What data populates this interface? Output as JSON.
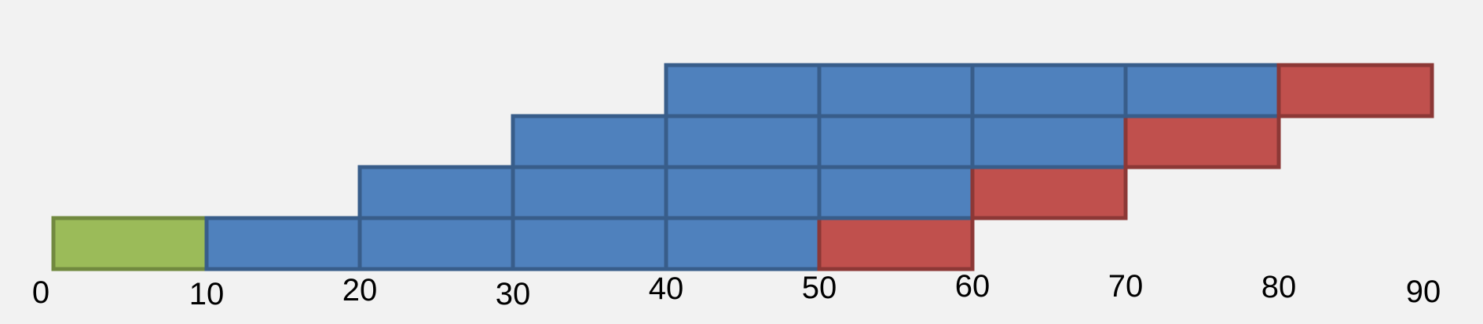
{
  "chart_data": {
    "type": "gantt-diagram",
    "x_axis": {
      "ticks": [
        {
          "value": 0,
          "label": "0"
        },
        {
          "value": 10,
          "label": "10"
        },
        {
          "value": 20,
          "label": "20"
        },
        {
          "value": 30,
          "label": "30"
        },
        {
          "value": 40,
          "label": "40"
        },
        {
          "value": 50,
          "label": "50"
        },
        {
          "value": 60,
          "label": "60"
        },
        {
          "value": 70,
          "label": "70"
        },
        {
          "value": 80,
          "label": "80"
        },
        {
          "value": 90,
          "label": "90"
        }
      ],
      "range": [
        0,
        90
      ]
    },
    "rows": [
      {
        "segments": [
          {
            "start": 0,
            "end": 10,
            "kind": "green"
          },
          {
            "start": 10,
            "end": 20,
            "kind": "blue"
          },
          {
            "start": 20,
            "end": 30,
            "kind": "blue"
          },
          {
            "start": 30,
            "end": 40,
            "kind": "blue"
          },
          {
            "start": 40,
            "end": 50,
            "kind": "blue"
          },
          {
            "start": 50,
            "end": 60,
            "kind": "red"
          }
        ]
      },
      {
        "segments": [
          {
            "start": 20,
            "end": 30,
            "kind": "blue"
          },
          {
            "start": 30,
            "end": 40,
            "kind": "blue"
          },
          {
            "start": 40,
            "end": 50,
            "kind": "blue"
          },
          {
            "start": 50,
            "end": 60,
            "kind": "blue"
          },
          {
            "start": 60,
            "end": 70,
            "kind": "red"
          }
        ]
      },
      {
        "segments": [
          {
            "start": 30,
            "end": 40,
            "kind": "blue"
          },
          {
            "start": 40,
            "end": 50,
            "kind": "blue"
          },
          {
            "start": 50,
            "end": 60,
            "kind": "blue"
          },
          {
            "start": 60,
            "end": 70,
            "kind": "blue"
          },
          {
            "start": 70,
            "end": 80,
            "kind": "red"
          }
        ]
      },
      {
        "segments": [
          {
            "start": 40,
            "end": 50,
            "kind": "blue"
          },
          {
            "start": 50,
            "end": 60,
            "kind": "blue"
          },
          {
            "start": 60,
            "end": 70,
            "kind": "blue"
          },
          {
            "start": 70,
            "end": 80,
            "kind": "blue"
          },
          {
            "start": 80,
            "end": 90,
            "kind": "red"
          }
        ]
      }
    ],
    "colors": {
      "green": {
        "fill": "#9bbb59",
        "stroke": "#71893f"
      },
      "blue": {
        "fill": "#4f81bd",
        "stroke": "#385d8a"
      },
      "red": {
        "fill": "#c0504d",
        "stroke": "#8c3836"
      }
    },
    "background": "#f2f2f2"
  }
}
